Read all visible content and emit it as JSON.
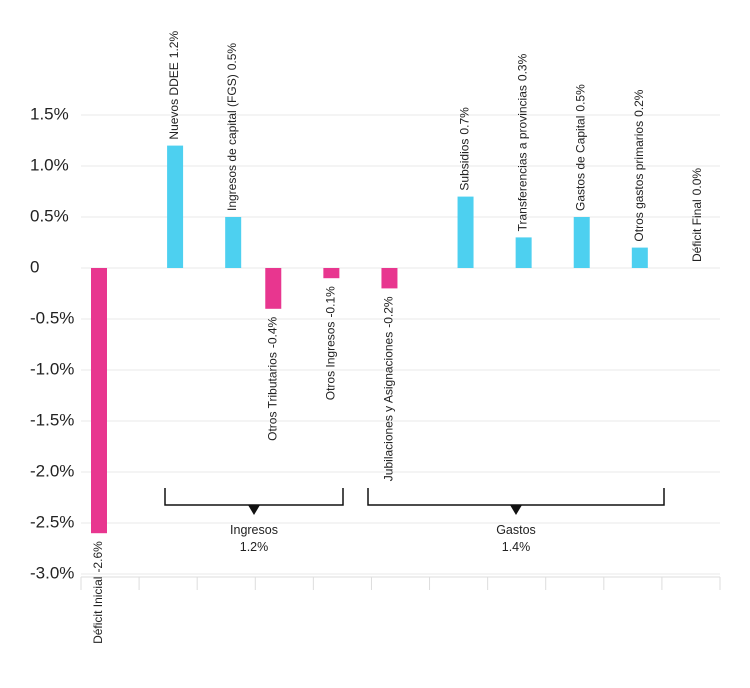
{
  "chart_data": {
    "type": "bar",
    "categories": [
      "Déficit Inicial",
      "Nuevos DDEE",
      "Ingresos de capital (FGS)",
      "Otros Tributarios",
      "Otros Ingresos",
      "Jubilaciones y Asignaciones",
      "Subsidios",
      "Transferencias a provincias",
      "Gastos de Capital",
      "Otros gastos primarios",
      "Déficit Final"
    ],
    "values": [
      -2.6,
      1.2,
      0.5,
      -0.4,
      -0.1,
      -0.2,
      0.7,
      0.3,
      0.5,
      0.2,
      0.0
    ],
    "value_labels": [
      "-2.6%",
      "1.2%",
      "0.5%",
      "-0.4%",
      "-0.1%",
      "-0.2%",
      "0.7%",
      "0.3%",
      "0.5%",
      "0.2%",
      "0.0%"
    ],
    "positive_color": "#4dd0f0",
    "negative_color": "#e8368f",
    "ylim": [
      -3.0,
      1.5
    ],
    "yticks": [
      {
        "value": 1.5,
        "label": "1.5%"
      },
      {
        "value": 1.0,
        "label": "1.0%"
      },
      {
        "value": 0.5,
        "label": "0.5%"
      },
      0,
      {
        "value": -0.5,
        "label": "-0.5%"
      },
      {
        "value": -1.0,
        "label": "-1.0%"
      },
      {
        "value": -1.5,
        "label": "-1.5%"
      },
      {
        "value": -2.0,
        "label": "-2.0%"
      },
      {
        "value": -2.5,
        "label": "-2.5%"
      },
      {
        "value": -3.0,
        "label": "-3.0%"
      }
    ],
    "grid": true,
    "annotations": [
      {
        "label": "Ingresos",
        "sublabel": "1.2%"
      },
      {
        "label": "Gastos",
        "sublabel": "1.4%"
      }
    ]
  }
}
